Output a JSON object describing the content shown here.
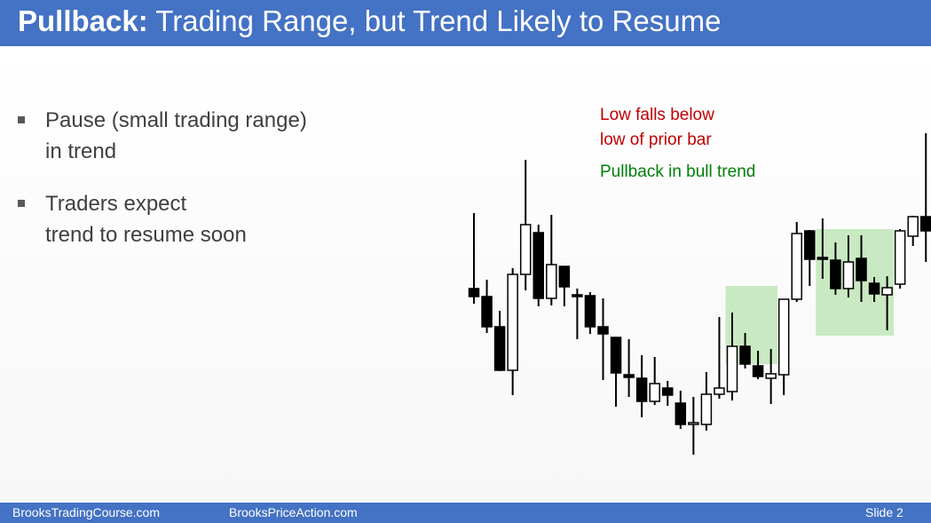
{
  "slide": {
    "title_bold": "Pullback:",
    "title_rest": "Trading Range, but Trend Likely to Resume",
    "bullets": [
      {
        "line1": "Pause (small trading range)",
        "line2": "in trend"
      },
      {
        "line1": "Traders expect",
        "line2": "trend to resume soon"
      }
    ],
    "annotation_red_1": "Low falls below",
    "annotation_red_2": "low of prior bar",
    "annotation_green": "Pullback in bull trend"
  },
  "colors": {
    "title_bar": "#4472c4",
    "annotation_red": "#c00000",
    "annotation_green": "#00800a",
    "highlight_box": "#c9e9c2"
  },
  "footer": {
    "left": "BrooksTradingCourse.com",
    "center": "BrooksPriceAction.com",
    "right": "Slide  2"
  },
  "chart_data": {
    "type": "candlestick",
    "title": "",
    "xlabel": "",
    "ylabel": "",
    "ylim": [
      0,
      420
    ],
    "candles": [
      {
        "o": 205,
        "c": 196,
        "h": 290,
        "l": 188
      },
      {
        "o": 196,
        "c": 162,
        "h": 215,
        "l": 155
      },
      {
        "o": 162,
        "c": 113,
        "h": 180,
        "l": 112
      },
      {
        "o": 113,
        "c": 221,
        "h": 228,
        "l": 85
      },
      {
        "o": 221,
        "c": 277,
        "h": 350,
        "l": 203
      },
      {
        "o": 268,
        "c": 194,
        "h": 277,
        "l": 185
      },
      {
        "o": 194,
        "c": 232,
        "h": 288,
        "l": 186
      },
      {
        "o": 230,
        "c": 207,
        "h": 230,
        "l": 185
      },
      {
        "o": 198,
        "c": 197,
        "h": 205,
        "l": 148
      },
      {
        "o": 197,
        "c": 162,
        "h": 201,
        "l": 154
      },
      {
        "o": 162,
        "c": 154,
        "h": 194,
        "l": 102
      },
      {
        "o": 150,
        "c": 110,
        "h": 150,
        "l": 72
      },
      {
        "o": 108,
        "c": 105,
        "h": 148,
        "l": 83
      },
      {
        "o": 104,
        "c": 78,
        "h": 130,
        "l": 60
      },
      {
        "o": 78,
        "c": 98,
        "h": 128,
        "l": 74
      },
      {
        "o": 93,
        "c": 85,
        "h": 101,
        "l": 73
      },
      {
        "o": 76,
        "c": 52,
        "h": 90,
        "l": 47
      },
      {
        "o": 53,
        "c": 54,
        "h": 83,
        "l": 18
      },
      {
        "o": 52,
        "c": 86,
        "h": 111,
        "l": 45
      },
      {
        "o": 86,
        "c": 93,
        "h": 173,
        "l": 81
      },
      {
        "o": 89,
        "c": 140,
        "h": 178,
        "l": 79
      },
      {
        "o": 140,
        "c": 120,
        "h": 155,
        "l": 115
      },
      {
        "o": 118,
        "c": 106,
        "h": 135,
        "l": 103
      },
      {
        "o": 104,
        "c": 109,
        "h": 137,
        "l": 75
      },
      {
        "o": 108,
        "c": 193,
        "h": 193,
        "l": 85
      },
      {
        "o": 193,
        "c": 267,
        "h": 280,
        "l": 190
      },
      {
        "o": 270,
        "c": 238,
        "h": 271,
        "l": 208
      },
      {
        "o": 240,
        "c": 239,
        "h": 284,
        "l": 216
      },
      {
        "o": 237,
        "c": 205,
        "h": 257,
        "l": 198
      },
      {
        "o": 205,
        "c": 235,
        "h": 265,
        "l": 195
      },
      {
        "o": 239,
        "c": 214,
        "h": 265,
        "l": 190
      },
      {
        "o": 211,
        "c": 199,
        "h": 218,
        "l": 190
      },
      {
        "o": 198,
        "c": 206,
        "h": 219,
        "l": 158
      },
      {
        "o": 210,
        "c": 270,
        "h": 272,
        "l": 205
      },
      {
        "o": 264,
        "c": 286,
        "h": 287,
        "l": 253
      },
      {
        "o": 286,
        "c": 270,
        "h": 380,
        "l": 235
      }
    ],
    "highlight_boxes": [
      {
        "start": 20,
        "end": 23,
        "low": 120,
        "high": 208
      },
      {
        "start": 27,
        "end": 32,
        "low": 152,
        "high": 272
      }
    ]
  }
}
